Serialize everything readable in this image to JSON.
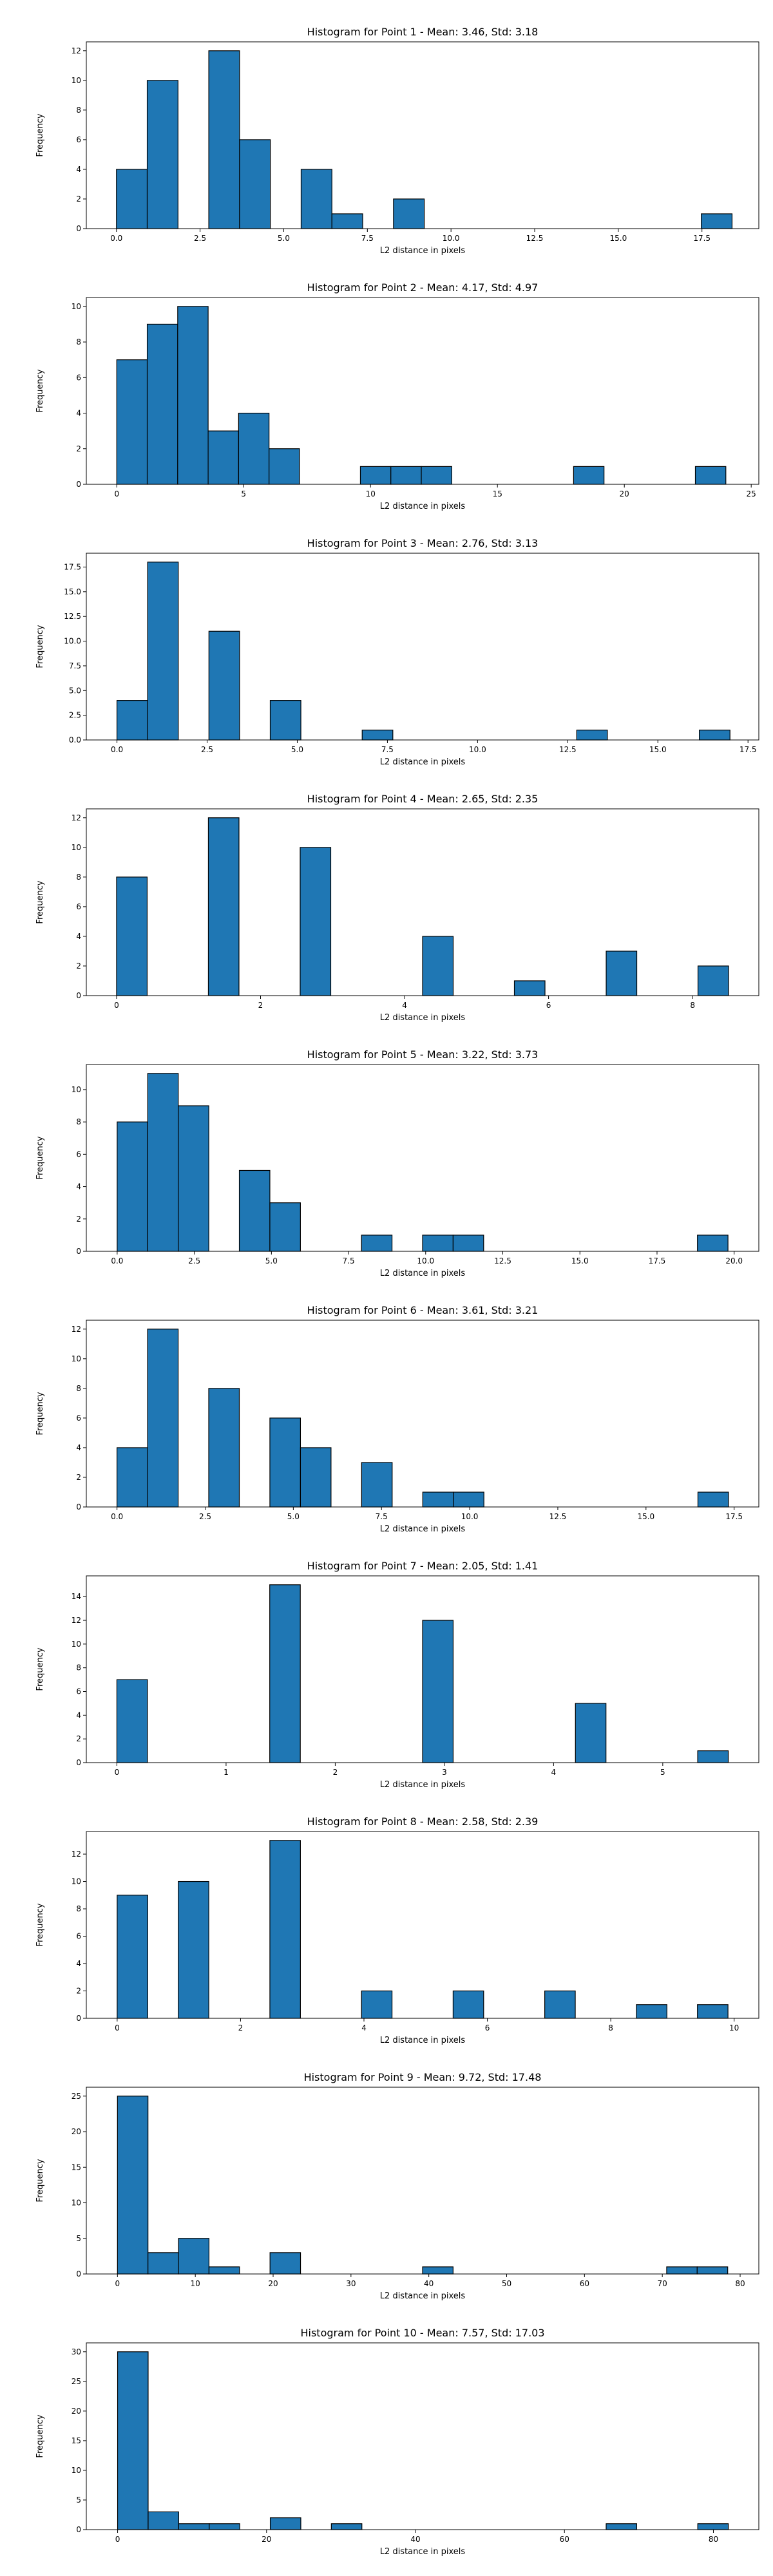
{
  "figure": {
    "bar_color": "#1f77b4",
    "edge_color": "#000000"
  },
  "chart_data": [
    {
      "type": "bar",
      "title": "Histogram for Point 1 - Mean: 3.46, Std: 3.18",
      "xlabel": "L2 distance in pixels",
      "ylabel": "Frequency",
      "xlim": [
        -0.9,
        19.2
      ],
      "ylim": [
        0,
        12.6
      ],
      "xticks": [
        0,
        2.5,
        5,
        7.5,
        10,
        12.5,
        15,
        17.5
      ],
      "xtick_labels": [
        "0.0",
        "2.5",
        "5.0",
        "7.5",
        "10.0",
        "12.5",
        "15.0",
        "17.5"
      ],
      "yticks": [
        0,
        2,
        4,
        6,
        8,
        10,
        12
      ],
      "ytick_labels": [
        "0",
        "2",
        "4",
        "6",
        "8",
        "10",
        "12"
      ],
      "bin_start": 0.0,
      "bin_width": 0.92,
      "counts": [
        4,
        10,
        0,
        12,
        6,
        0,
        4,
        1,
        0,
        2,
        0,
        0,
        0,
        0,
        0,
        0,
        0,
        0,
        0,
        1
      ]
    },
    {
      "type": "bar",
      "title": "Histogram for Point 2 - Mean: 4.17, Std: 4.97",
      "xlabel": "L2 distance in pixels",
      "ylabel": "Frequency",
      "xlim": [
        -1.2,
        25.3
      ],
      "ylim": [
        0,
        10.5
      ],
      "xticks": [
        0,
        5,
        10,
        15,
        20,
        25
      ],
      "xtick_labels": [
        "0",
        "5",
        "10",
        "15",
        "20",
        "25"
      ],
      "yticks": [
        0,
        2,
        4,
        6,
        8,
        10
      ],
      "ytick_labels": [
        "0",
        "2",
        "4",
        "6",
        "8",
        "10"
      ],
      "bin_start": 0.0,
      "bin_width": 1.2,
      "counts": [
        7,
        9,
        10,
        3,
        4,
        2,
        0,
        0,
        1,
        1,
        1,
        0,
        0,
        0,
        0,
        1,
        0,
        0,
        0,
        1
      ]
    },
    {
      "type": "bar",
      "title": "Histogram for Point 3 - Mean: 2.76, Std: 3.13",
      "xlabel": "L2 distance in pixels",
      "ylabel": "Frequency",
      "xlim": [
        -0.85,
        17.8
      ],
      "ylim": [
        0,
        18.9
      ],
      "xticks": [
        0,
        2.5,
        5,
        7.5,
        10,
        12.5,
        15,
        17.5
      ],
      "xtick_labels": [
        "0.0",
        "2.5",
        "5.0",
        "7.5",
        "10.0",
        "12.5",
        "15.0",
        "17.5"
      ],
      "yticks": [
        0,
        2.5,
        5,
        7.5,
        10,
        12.5,
        15,
        17.5
      ],
      "ytick_labels": [
        "0.0",
        "2.5",
        "5.0",
        "7.5",
        "10.0",
        "12.5",
        "15.0",
        "17.5"
      ],
      "bin_start": 0.0,
      "bin_width": 0.85,
      "counts": [
        4,
        18,
        0,
        11,
        0,
        4,
        0,
        0,
        1,
        0,
        0,
        0,
        0,
        0,
        0,
        1,
        0,
        0,
        0,
        1
      ]
    },
    {
      "type": "bar",
      "title": "Histogram for Point 4 - Mean: 2.65, Std: 2.35",
      "xlabel": "L2 distance in pixels",
      "ylabel": "Frequency",
      "xlim": [
        -0.42,
        8.92
      ],
      "ylim": [
        0,
        12.6
      ],
      "xticks": [
        0,
        2,
        4,
        6,
        8
      ],
      "xtick_labels": [
        "0",
        "2",
        "4",
        "6",
        "8"
      ],
      "yticks": [
        0,
        2,
        4,
        6,
        8,
        10,
        12
      ],
      "ytick_labels": [
        "0",
        "2",
        "4",
        "6",
        "8",
        "10",
        "12"
      ],
      "bin_start": 0.0,
      "bin_width": 0.425,
      "counts": [
        8,
        0,
        0,
        12,
        0,
        0,
        10,
        0,
        0,
        0,
        4,
        0,
        0,
        1,
        0,
        0,
        3,
        0,
        0,
        2
      ]
    },
    {
      "type": "bar",
      "title": "Histogram for Point 5 - Mean: 3.22, Std: 3.73",
      "xlabel": "L2 distance in pixels",
      "ylabel": "Frequency",
      "xlim": [
        -1.0,
        20.8
      ],
      "ylim": [
        0,
        11.55
      ],
      "xticks": [
        0,
        2.5,
        5,
        7.5,
        10,
        12.5,
        15,
        17.5,
        20
      ],
      "xtick_labels": [
        "0.0",
        "2.5",
        "5.0",
        "7.5",
        "10.0",
        "12.5",
        "15.0",
        "17.5",
        "20.0"
      ],
      "yticks": [
        0,
        2,
        4,
        6,
        8,
        10
      ],
      "ytick_labels": [
        "0",
        "2",
        "4",
        "6",
        "8",
        "10"
      ],
      "bin_start": 0.0,
      "bin_width": 0.99,
      "counts": [
        8,
        11,
        9,
        0,
        5,
        3,
        0,
        0,
        1,
        0,
        1,
        1,
        0,
        0,
        0,
        0,
        0,
        0,
        0,
        1
      ]
    },
    {
      "type": "bar",
      "title": "Histogram for Point 6 - Mean: 3.61, Std: 3.21",
      "xlabel": "L2 distance in pixels",
      "ylabel": "Frequency",
      "xlim": [
        -0.87,
        18.2
      ],
      "ylim": [
        0,
        12.6
      ],
      "xticks": [
        0,
        2.5,
        5,
        7.5,
        10,
        12.5,
        15,
        17.5
      ],
      "xtick_labels": [
        "0.0",
        "2.5",
        "5.0",
        "7.5",
        "10.0",
        "12.5",
        "15.0",
        "17.5"
      ],
      "yticks": [
        0,
        2,
        4,
        6,
        8,
        10,
        12
      ],
      "ytick_labels": [
        "0",
        "2",
        "4",
        "6",
        "8",
        "10",
        "12"
      ],
      "bin_start": 0.0,
      "bin_width": 0.867,
      "counts": [
        4,
        12,
        0,
        8,
        0,
        6,
        4,
        0,
        3,
        0,
        1,
        1,
        0,
        0,
        0,
        0,
        0,
        0,
        0,
        1
      ]
    },
    {
      "type": "bar",
      "title": "Histogram for Point 7 - Mean: 2.05, Std: 1.41",
      "xlabel": "L2 distance in pixels",
      "ylabel": "Frequency",
      "xlim": [
        -0.28,
        5.88
      ],
      "ylim": [
        0,
        15.75
      ],
      "xticks": [
        0,
        1,
        2,
        3,
        4,
        5
      ],
      "xtick_labels": [
        "0",
        "1",
        "2",
        "3",
        "4",
        "5"
      ],
      "yticks": [
        0,
        2,
        4,
        6,
        8,
        10,
        12,
        14
      ],
      "ytick_labels": [
        "0",
        "2",
        "4",
        "6",
        "8",
        "10",
        "12",
        "14"
      ],
      "bin_start": 0.0,
      "bin_width": 0.28,
      "counts": [
        7,
        0,
        0,
        0,
        0,
        15,
        0,
        0,
        0,
        0,
        12,
        0,
        0,
        0,
        0,
        5,
        0,
        0,
        0,
        1
      ]
    },
    {
      "type": "bar",
      "title": "Histogram for Point 8 - Mean: 2.58, Std: 2.39",
      "xlabel": "L2 distance in pixels",
      "ylabel": "Frequency",
      "xlim": [
        -0.5,
        10.4
      ],
      "ylim": [
        0,
        13.65
      ],
      "xticks": [
        0,
        2,
        4,
        6,
        8,
        10
      ],
      "xtick_labels": [
        "0",
        "2",
        "4",
        "6",
        "8",
        "10"
      ],
      "yticks": [
        0,
        2,
        4,
        6,
        8,
        10,
        12
      ],
      "ytick_labels": [
        "0",
        "2",
        "4",
        "6",
        "8",
        "10",
        "12"
      ],
      "bin_start": 0.0,
      "bin_width": 0.495,
      "counts": [
        9,
        0,
        10,
        0,
        0,
        13,
        0,
        0,
        2,
        0,
        0,
        2,
        0,
        0,
        2,
        0,
        0,
        1,
        0,
        1
      ]
    },
    {
      "type": "bar",
      "title": "Histogram for Point 9 - Mean: 9.72, Std: 17.48",
      "xlabel": "L2 distance in pixels",
      "ylabel": "Frequency",
      "xlim": [
        -4.0,
        82.4
      ],
      "ylim": [
        0,
        26.25
      ],
      "xticks": [
        0,
        10,
        20,
        30,
        40,
        50,
        60,
        70,
        80
      ],
      "xtick_labels": [
        "0",
        "10",
        "20",
        "30",
        "40",
        "50",
        "60",
        "70",
        "80"
      ],
      "yticks": [
        0,
        5,
        10,
        15,
        20,
        25
      ],
      "ytick_labels": [
        "0",
        "5",
        "10",
        "15",
        "20",
        "25"
      ],
      "bin_start": 0.0,
      "bin_width": 3.92,
      "counts": [
        25,
        3,
        5,
        1,
        0,
        3,
        0,
        0,
        0,
        0,
        1,
        0,
        0,
        0,
        0,
        0,
        0,
        0,
        1,
        1
      ]
    },
    {
      "type": "bar",
      "title": "Histogram for Point 10 - Mean: 7.57, Std: 17.03",
      "xlabel": "L2 distance in pixels",
      "ylabel": "Frequency",
      "xlim": [
        -4.2,
        86.1
      ],
      "ylim": [
        0,
        31.5
      ],
      "xticks": [
        0,
        20,
        40,
        60,
        80
      ],
      "xtick_labels": [
        "0",
        "20",
        "40",
        "60",
        "80"
      ],
      "yticks": [
        0,
        5,
        10,
        15,
        20,
        25,
        30
      ],
      "ytick_labels": [
        "0",
        "5",
        "10",
        "15",
        "20",
        "25",
        "30"
      ],
      "bin_start": 0.0,
      "bin_width": 4.1,
      "counts": [
        30,
        3,
        1,
        1,
        0,
        2,
        0,
        1,
        0,
        0,
        0,
        0,
        0,
        0,
        0,
        0,
        1,
        0,
        0,
        1
      ]
    }
  ]
}
